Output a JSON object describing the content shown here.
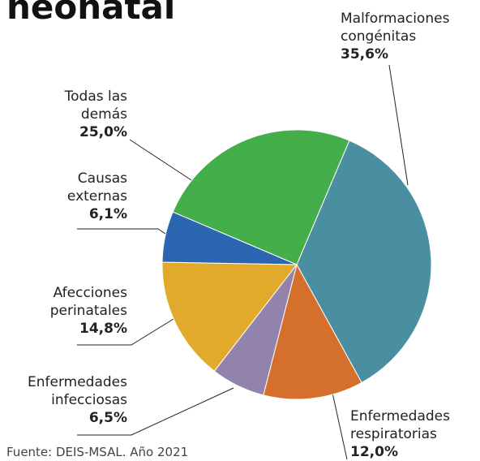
{
  "chart_data": {
    "type": "pie",
    "title": "neonatal",
    "categories": [
      "Malformaciones congénitas",
      "Enfermedades respiratorias",
      "Enfermedades infecciosas",
      "Afecciones perinatales",
      "Causas externas",
      "Todas las demás"
    ],
    "values": [
      35.6,
      12.0,
      6.5,
      14.8,
      6.1,
      25.0
    ],
    "value_labels": [
      "35,6%",
      "12,0%",
      "6,5%",
      "14,8%",
      "6,1%",
      "25,0%"
    ],
    "colors": [
      "#4a8fa1",
      "#d4702b",
      "#9283ad",
      "#e1aa2b",
      "#2c66b1",
      "#44ae4b"
    ],
    "source": "Fuente: DEIS-MSAL. Año 2021"
  }
}
